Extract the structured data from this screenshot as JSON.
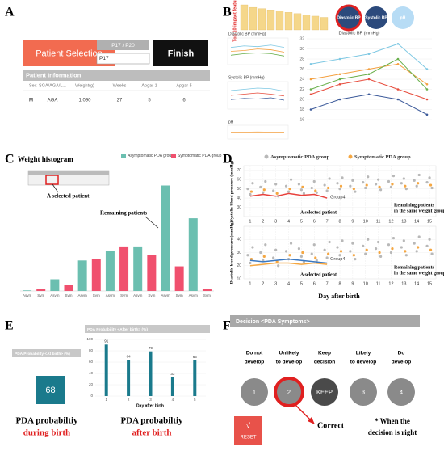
{
  "panels": [
    "A",
    "B",
    "C",
    "D",
    "E",
    "F"
  ],
  "a": {
    "title": "Patient Selection",
    "pager": "P17 / P20",
    "input": "P17",
    "finish": "Finish",
    "section": "Patient Information",
    "headers": [
      "Sex",
      "SGA/AGA/L...",
      "Weight(g)",
      "Weeks",
      "Apgar 1",
      "Apgar 5"
    ],
    "row": [
      "M",
      "AGA",
      "1 090",
      "27",
      "5",
      "6"
    ]
  },
  "b": {
    "features_label": "Top 10 impact features",
    "features": {
      "type": "bar",
      "values": [
        10,
        9,
        8.5,
        8,
        7.5,
        7,
        6.5,
        6,
        5.5,
        5
      ],
      "ylim": [
        0,
        10
      ],
      "color": "#f5d78a"
    },
    "buttons": [
      "Diastolic BP",
      "Systolic BP",
      "pH"
    ],
    "minis": [
      {
        "type": "line",
        "title": "Diastolic BP (mmHg)",
        "ylim": [
          10,
          40
        ],
        "series": [
          {
            "color": "#7ec8e3",
            "values": [
              30,
              32,
              31,
              33,
              30
            ]
          },
          {
            "color": "#f4a040",
            "values": [
              25,
              26,
              28,
              27,
              24
            ]
          },
          {
            "color": "#6ab04c",
            "values": [
              20,
              22,
              23,
              22,
              19
            ]
          }
        ]
      },
      {
        "type": "line",
        "title": "Systolic BP (mmHg)",
        "ylim": [
          20,
          60
        ],
        "series": [
          {
            "color": "#7ec8e3",
            "values": [
              48,
              50,
              52,
              51,
              47
            ]
          },
          {
            "color": "#e74c3c",
            "values": [
              40,
              42,
              44,
              42,
              39
            ]
          },
          {
            "color": "#3c5a9a",
            "values": [
              33,
              35,
              34,
              36,
              32
            ]
          }
        ]
      },
      {
        "type": "line",
        "title": "pH",
        "ylim": [
          7,
          7.6
        ],
        "series": [
          {
            "color": "#f4a040",
            "values": [
              7.3,
              7.3,
              7.31,
              7.3,
              7.3
            ]
          }
        ]
      }
    ],
    "main": {
      "type": "line",
      "title": "Diastolic BP (mmHg)",
      "ylim": [
        16,
        32
      ],
      "yticks": [
        16,
        18,
        20,
        22,
        24,
        26,
        28,
        30,
        32
      ],
      "series": [
        {
          "color": "#7ec8e3",
          "values": [
            27,
            28,
            29,
            31,
            26
          ]
        },
        {
          "color": "#f4a040",
          "values": [
            24,
            25,
            26,
            27,
            23
          ]
        },
        {
          "color": "#6ab04c",
          "values": [
            22,
            24,
            25,
            28,
            22
          ]
        },
        {
          "color": "#e74c3c",
          "values": [
            21,
            23,
            24,
            22,
            20
          ]
        },
        {
          "color": "#3c5a9a",
          "values": [
            18,
            20,
            21,
            20,
            17
          ]
        }
      ]
    }
  },
  "c": {
    "type": "bar",
    "title": "Weight histogram",
    "categories": [
      "Asym",
      "Sym",
      "Asym",
      "Sym",
      "Asym",
      "Sym",
      "Asym",
      "Sym",
      "Asym",
      "Sym",
      "Asym",
      "Sym",
      "Asym",
      "Sym"
    ],
    "series": [
      {
        "name": "Asymptomatic PDA group",
        "color": "#6bbfb0",
        "values": [
          0.5,
          10,
          26,
          34,
          38,
          90,
          62
        ]
      },
      {
        "name": "Symptomatic PDA group",
        "color": "#f0506e",
        "values": [
          1.5,
          5,
          27,
          38,
          31,
          21,
          2
        ]
      }
    ],
    "ylim": [
      0,
      100
    ],
    "annotations": [
      "A selected patient",
      "Remaining patients"
    ]
  },
  "d": {
    "type": "scatter",
    "legend": [
      {
        "name": "Asymptomatic PDA group",
        "color": "#b8b8b8"
      },
      {
        "name": "Symptomatic PDA group",
        "color": "#f5a742"
      }
    ],
    "x_label": "Day after birth",
    "xlim": [
      0.5,
      15.5
    ],
    "xticks": [
      1,
      2,
      3,
      4,
      5,
      6,
      7,
      8,
      9,
      10,
      11,
      12,
      13,
      14,
      15
    ],
    "plots": [
      {
        "y_label": "Systolic blood pressure (mmHg)",
        "ylim": [
          20,
          75
        ],
        "yticks": [
          30,
          40,
          50,
          60,
          70
        ],
        "asym": [
          [
            50,
            44,
            56
          ],
          [
            52,
            46,
            58
          ],
          [
            48,
            55,
            42
          ],
          [
            53,
            47,
            60
          ],
          [
            55,
            49,
            45
          ],
          [
            51,
            58,
            46
          ],
          [
            54,
            48,
            61
          ],
          [
            56,
            50,
            62
          ],
          [
            53,
            59,
            47
          ],
          [
            57,
            51,
            63
          ],
          [
            55,
            60,
            49
          ],
          [
            58,
            52,
            64
          ],
          [
            56,
            61,
            50
          ],
          [
            59,
            53,
            65
          ],
          [
            57,
            62,
            51
          ]
        ],
        "sym": [
          47,
          49,
          45,
          50,
          52,
          48,
          51,
          53,
          50,
          54,
          52,
          55,
          53,
          56,
          54
        ],
        "lines": [
          {
            "color": "#e8413c",
            "values": [
              42,
              44,
              42,
              45,
              43,
              44,
              40
            ]
          }
        ],
        "annotations": [
          "Group4",
          "A selected patient",
          "Remaining patients",
          "in the same weight group"
        ]
      },
      {
        "y_label": "Diastolic blood pressure (mmHg)",
        "ylim": [
          10,
          50
        ],
        "yticks": [
          10,
          20,
          30,
          40
        ],
        "asym": [
          [
            28,
            22,
            34
          ],
          [
            30,
            24,
            36
          ],
          [
            26,
            32,
            20
          ],
          [
            31,
            25,
            37
          ],
          [
            33,
            27,
            23
          ],
          [
            29,
            36,
            24
          ],
          [
            32,
            26,
            38
          ],
          [
            34,
            28,
            39
          ],
          [
            31,
            37,
            25
          ],
          [
            35,
            29,
            40
          ],
          [
            33,
            38,
            27
          ],
          [
            36,
            30,
            41
          ],
          [
            34,
            39,
            28
          ],
          [
            37,
            31,
            42
          ],
          [
            35,
            40,
            29
          ]
        ],
        "sym": [
          25,
          27,
          23,
          28,
          30,
          26,
          29,
          31,
          28,
          32,
          30,
          33,
          31,
          34,
          32
        ],
        "lines": [
          {
            "color": "#3a78c2",
            "values": [
              24,
              23,
              24,
              25,
              24,
              23,
              22
            ]
          },
          {
            "color": "#f5a742",
            "values": [
              20,
              21,
              22,
              22,
              21,
              22,
              21
            ]
          }
        ],
        "annotations": [
          "Group4",
          "A selected patient",
          "Remaining patients",
          "in the same weight group"
        ]
      }
    ]
  },
  "e": {
    "at_birth": {
      "title": "PDA Probability <At birth> (%)",
      "value": 68
    },
    "after_birth": {
      "type": "bar",
      "title": "PDA Probability <After birth> (%)",
      "categories": [
        "1",
        "2",
        "3",
        "4",
        "5"
      ],
      "values": [
        91,
        64,
        79,
        33,
        63
      ],
      "ylim": [
        0,
        100
      ],
      "yticks": [
        0,
        20,
        40,
        60,
        80,
        100
      ],
      "x_label": "Day after birth",
      "color": "#1a7a8c"
    },
    "captions": [
      [
        "PDA probabiltiy",
        "during birth"
      ],
      [
        "PDA probabiltiy",
        "after birth"
      ]
    ]
  },
  "f": {
    "title": "Decision <PDA Symptoms>",
    "options": [
      {
        "label": [
          "Do not",
          "develop"
        ],
        "button": "1"
      },
      {
        "label": [
          "Unlikely",
          "to develop"
        ],
        "button": "2"
      },
      {
        "label": [
          "Keep",
          "decision"
        ],
        "button": "KEEP"
      },
      {
        "label": [
          "Likely",
          "to develop"
        ],
        "button": "3"
      },
      {
        "label": [
          "Do",
          "develop"
        ],
        "button": "4"
      }
    ],
    "reset_icon": "√",
    "reset": "RESET",
    "result": "Correct",
    "note": [
      "* When the",
      "decision is right"
    ]
  }
}
